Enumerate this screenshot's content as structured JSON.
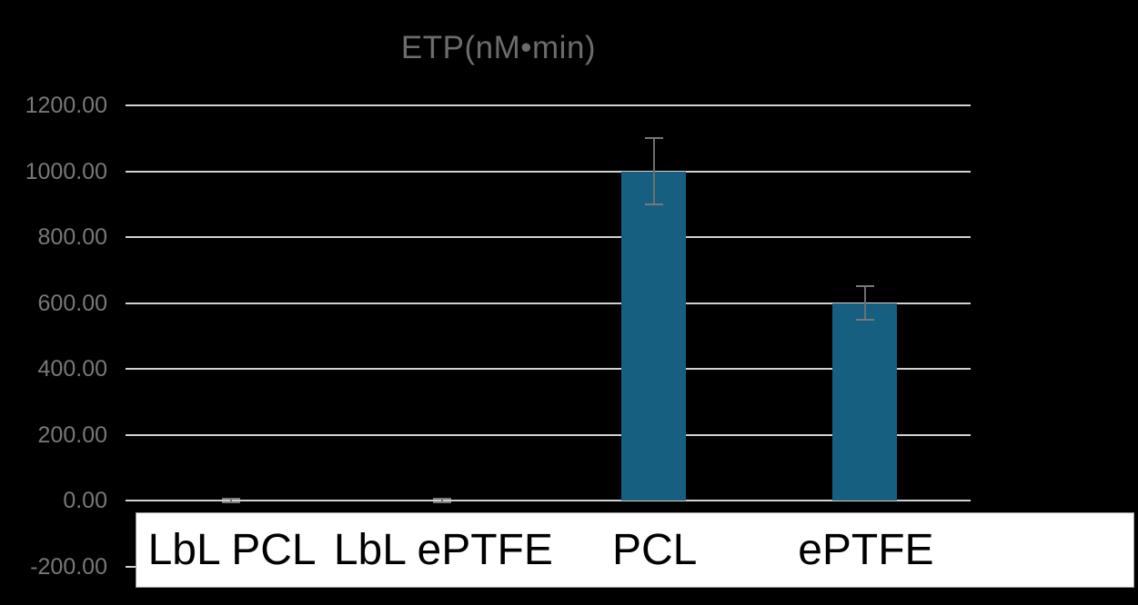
{
  "chart_data": {
    "type": "bar",
    "title": "ETP(nM•min)",
    "categories": [
      "LbL PCL",
      "LbL ePTFE",
      "PCL",
      "ePTFE"
    ],
    "values": [
      0,
      0,
      1000,
      600
    ],
    "errors": [
      5,
      5,
      100,
      50
    ],
    "xlabel": "",
    "ylabel": "",
    "ylim": [
      -200,
      1200
    ],
    "ytick_step": 200,
    "ytick_labels": [
      "1200.00",
      "1000.00",
      "800.00",
      "600.00",
      "400.00",
      "200.00",
      "0.00",
      "-200.00"
    ],
    "grid": true,
    "legend": false,
    "colors": {
      "background": "#000000",
      "bar": "#165f80",
      "gridline": "#d2d2d2",
      "title_text": "#6c6c6c",
      "y_tick_text": "#787878",
      "error_bar": "#6e6e6e",
      "category_text": "#000000",
      "label_band_bg": "#ffffff",
      "label_band_border": "#9a9a9a"
    }
  }
}
